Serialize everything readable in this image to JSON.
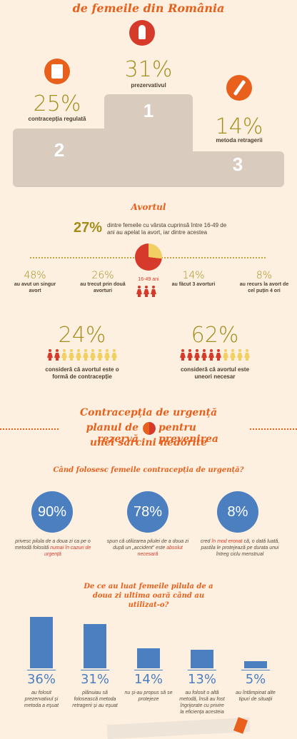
{
  "header": {
    "title": "de femeile din România"
  },
  "podium": {
    "first": {
      "pct": "31%",
      "label": "prezervativul",
      "place": "1"
    },
    "second": {
      "pct": "25%",
      "label": "contracepția regulată",
      "place": "2"
    },
    "third": {
      "pct": "14%",
      "label": "metoda retragerii",
      "place": "3"
    }
  },
  "abortion": {
    "title": "Avortul",
    "headline_pct": "27%",
    "headline_text": "dintre femeile cu vârsta cuprinsă între 16-49 de ani au apelat la avort, iar dintre acestea",
    "age_label": "16-49 ani",
    "stats": [
      {
        "pct": "48%",
        "label": "au avut un singur avort"
      },
      {
        "pct": "26%",
        "label": "au trecut prin două avorturi"
      },
      {
        "pct": "14%",
        "label": "au făcut 3 avorturi"
      },
      {
        "pct": "8%",
        "label": "au recurs la avort de cel puțin 4 ori"
      }
    ],
    "opinions": [
      {
        "pct": "24%",
        "label": "consideră că avortul este o formă de contracepție",
        "red_count": 2
      },
      {
        "pct": "62%",
        "label": "consideră că avortul este uneori necesar",
        "red_count": 6
      }
    ]
  },
  "emergency": {
    "title_line1": "Contracepția de urgență",
    "title_line2a": "planul de rezervă",
    "title_line2b": "pentru prevenirea",
    "title_line3": "unei sarcini nedorite",
    "question1": "Când folosesc femeile contracepția de urgență?",
    "circles": [
      {
        "pct": "90%",
        "text_a": "privesc pilula de a doua zi ca pe o metodă folosită ",
        "text_red": "numai în cazuri de urgență",
        "text_b": ""
      },
      {
        "pct": "78%",
        "text_a": "spun că utilizarea pilulei de a doua zi după un „accident” este ",
        "text_red": "absolut necesară",
        "text_b": ""
      },
      {
        "pct": "8%",
        "text_a": "cred ",
        "text_red": "în mod eronat",
        "text_b": " că, o dată luată, pastila le protejează pe durata unui întreg ciclu menstrual"
      }
    ],
    "question2": "De ce au luat femeile pilula de a doua zi ultima oară când au utilizat-o?"
  },
  "chart_data": {
    "type": "bar",
    "categories": [
      "au folosit prezervativul și metoda a eșuat",
      "plănuiau să folosească metoda retragerii și au eșuat",
      "nu și-au propus să se protejeze",
      "au folosit o altă metodă, însă au fost îngrijorate cu privire la eficiența acesteia",
      "au întâmpinat alte tipuri de situații"
    ],
    "values": [
      36,
      31,
      14,
      13,
      5
    ],
    "labels": [
      "36%",
      "31%",
      "14%",
      "13%",
      "5%"
    ],
    "ylim": [
      0,
      40
    ]
  },
  "colors": {
    "orange": "#e8601c",
    "olive": "#a58d1c",
    "red": "#d63a2a",
    "blue": "#4b7fc0",
    "podium": "#d9cbbd"
  }
}
